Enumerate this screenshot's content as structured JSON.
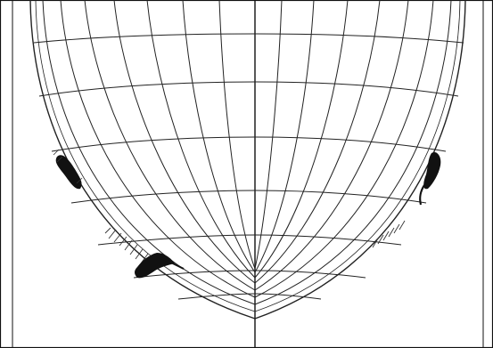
{
  "figure": {
    "description_visible_text": "",
    "colors": {
      "background": "#ffffff",
      "ink": "#111111",
      "grid": "#222222",
      "hatch": "#333333"
    },
    "grid_labels": []
  }
}
